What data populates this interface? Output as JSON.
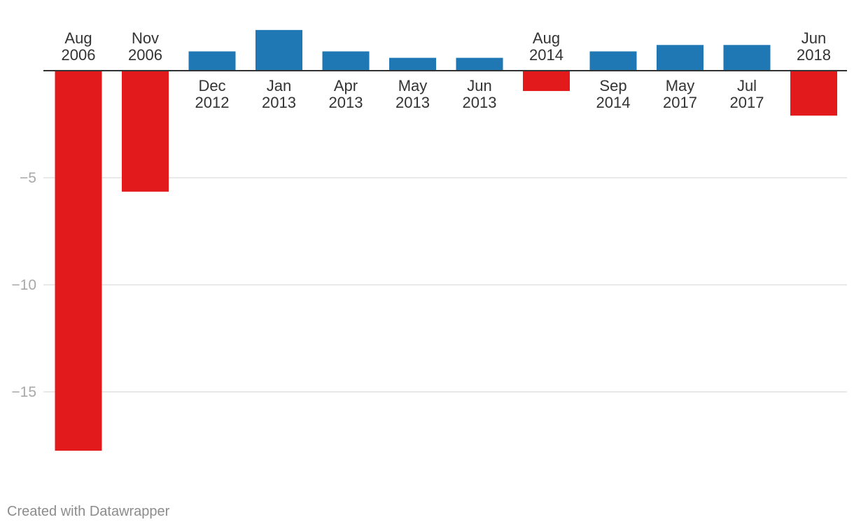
{
  "chart_data": {
    "type": "bar",
    "title": "",
    "xlabel": "",
    "ylabel": "",
    "categories": [
      [
        "Aug",
        "2006"
      ],
      [
        "Nov",
        "2006"
      ],
      [
        "Dec",
        "2012"
      ],
      [
        "Jan",
        "2013"
      ],
      [
        "Apr",
        "2013"
      ],
      [
        "May",
        "2013"
      ],
      [
        "Jun",
        "2013"
      ],
      [
        "Aug",
        "2014"
      ],
      [
        "Sep",
        "2014"
      ],
      [
        "May",
        "2017"
      ],
      [
        "Jul",
        "2017"
      ],
      [
        "Jun",
        "2018"
      ]
    ],
    "values": [
      -17.75,
      -5.65,
      0.9,
      1.9,
      0.9,
      0.6,
      0.6,
      -0.95,
      0.9,
      1.2,
      1.2,
      -2.1
    ],
    "ylim": [
      -18,
      1.9
    ],
    "yticks": [
      -5,
      -10,
      -15
    ],
    "ytick_labels": [
      "−5",
      "−10",
      "−15"
    ],
    "grid": true,
    "colors": {
      "positive": "#1f77b4",
      "negative": "#e31a1c",
      "axis": "#333333",
      "grid": "#e2e2e2"
    }
  },
  "footer": {
    "credit": "Created with Datawrapper"
  }
}
